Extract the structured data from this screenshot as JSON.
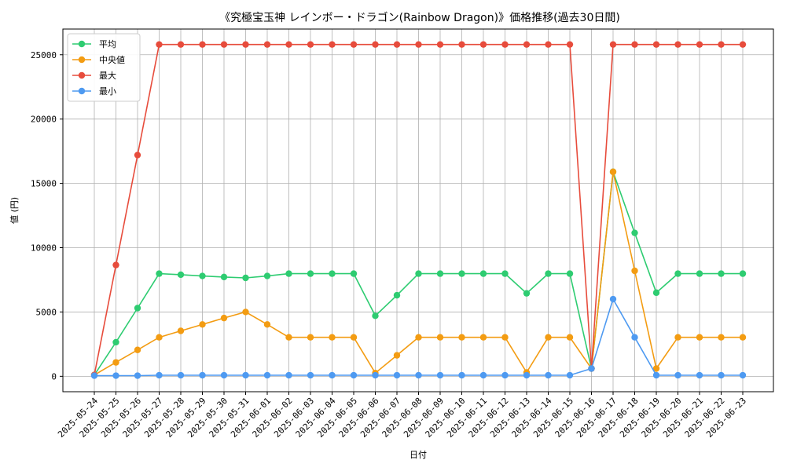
{
  "chart_data": {
    "type": "line",
    "title": "《究極宝玉神 レインボー・ドラゴン(Rainbow Dragon)》価格推移(過去30日間)",
    "xlabel": "日付",
    "ylabel": "値 (円)",
    "ylim": [
      -1200,
      27000
    ],
    "yticks": [
      0,
      5000,
      10000,
      15000,
      20000,
      25000
    ],
    "grid": true,
    "legend_position": "top-left",
    "categories": [
      "2025-05-24",
      "2025-05-25",
      "2025-05-26",
      "2025-05-27",
      "2025-05-28",
      "2025-05-29",
      "2025-05-30",
      "2025-05-31",
      "2025-06-01",
      "2025-06-02",
      "2025-06-03",
      "2025-06-04",
      "2025-06-05",
      "2025-06-06",
      "2025-06-07",
      "2025-06-08",
      "2025-06-09",
      "2025-06-10",
      "2025-06-11",
      "2025-06-12",
      "2025-06-13",
      "2025-06-14",
      "2025-06-15",
      "2025-06-16",
      "2025-06-17",
      "2025-06-18",
      "2025-06-19",
      "2025-06-20",
      "2025-06-21",
      "2025-06-22",
      "2025-06-23"
    ],
    "series": [
      {
        "name": "平均",
        "color": "#2ecc71",
        "values": [
          100,
          2650,
          5300,
          7980,
          7900,
          7800,
          7720,
          7650,
          7800,
          7980,
          7980,
          7980,
          7980,
          4700,
          6300,
          7980,
          7980,
          7980,
          7980,
          7980,
          6450,
          7980,
          7980,
          600,
          15900,
          11150,
          6500,
          7980,
          7980,
          7980,
          7980
        ]
      },
      {
        "name": "中央値",
        "color": "#f39c12",
        "values": [
          100,
          1080,
          2050,
          3030,
          3530,
          4030,
          4530,
          5000,
          4030,
          3030,
          3030,
          3030,
          3030,
          250,
          1630,
          3030,
          3030,
          3030,
          3030,
          3030,
          300,
          3030,
          3030,
          600,
          15900,
          8200,
          600,
          3030,
          3030,
          3030,
          3030
        ]
      },
      {
        "name": "最大",
        "color": "#e74c3c",
        "values": [
          100,
          8650,
          17200,
          25800,
          25800,
          25800,
          25800,
          25800,
          25800,
          25800,
          25800,
          25800,
          25800,
          25800,
          25800,
          25800,
          25800,
          25800,
          25800,
          25800,
          25800,
          25800,
          25800,
          600,
          25800,
          25800,
          25800,
          25800,
          25800,
          25800,
          25800
        ]
      },
      {
        "name": "最小",
        "color": "#4e9af1",
        "values": [
          50,
          50,
          50,
          80,
          80,
          80,
          80,
          80,
          80,
          80,
          80,
          80,
          80,
          80,
          80,
          80,
          80,
          80,
          80,
          80,
          80,
          80,
          80,
          600,
          6000,
          3030,
          80,
          80,
          80,
          80,
          80
        ]
      }
    ]
  }
}
